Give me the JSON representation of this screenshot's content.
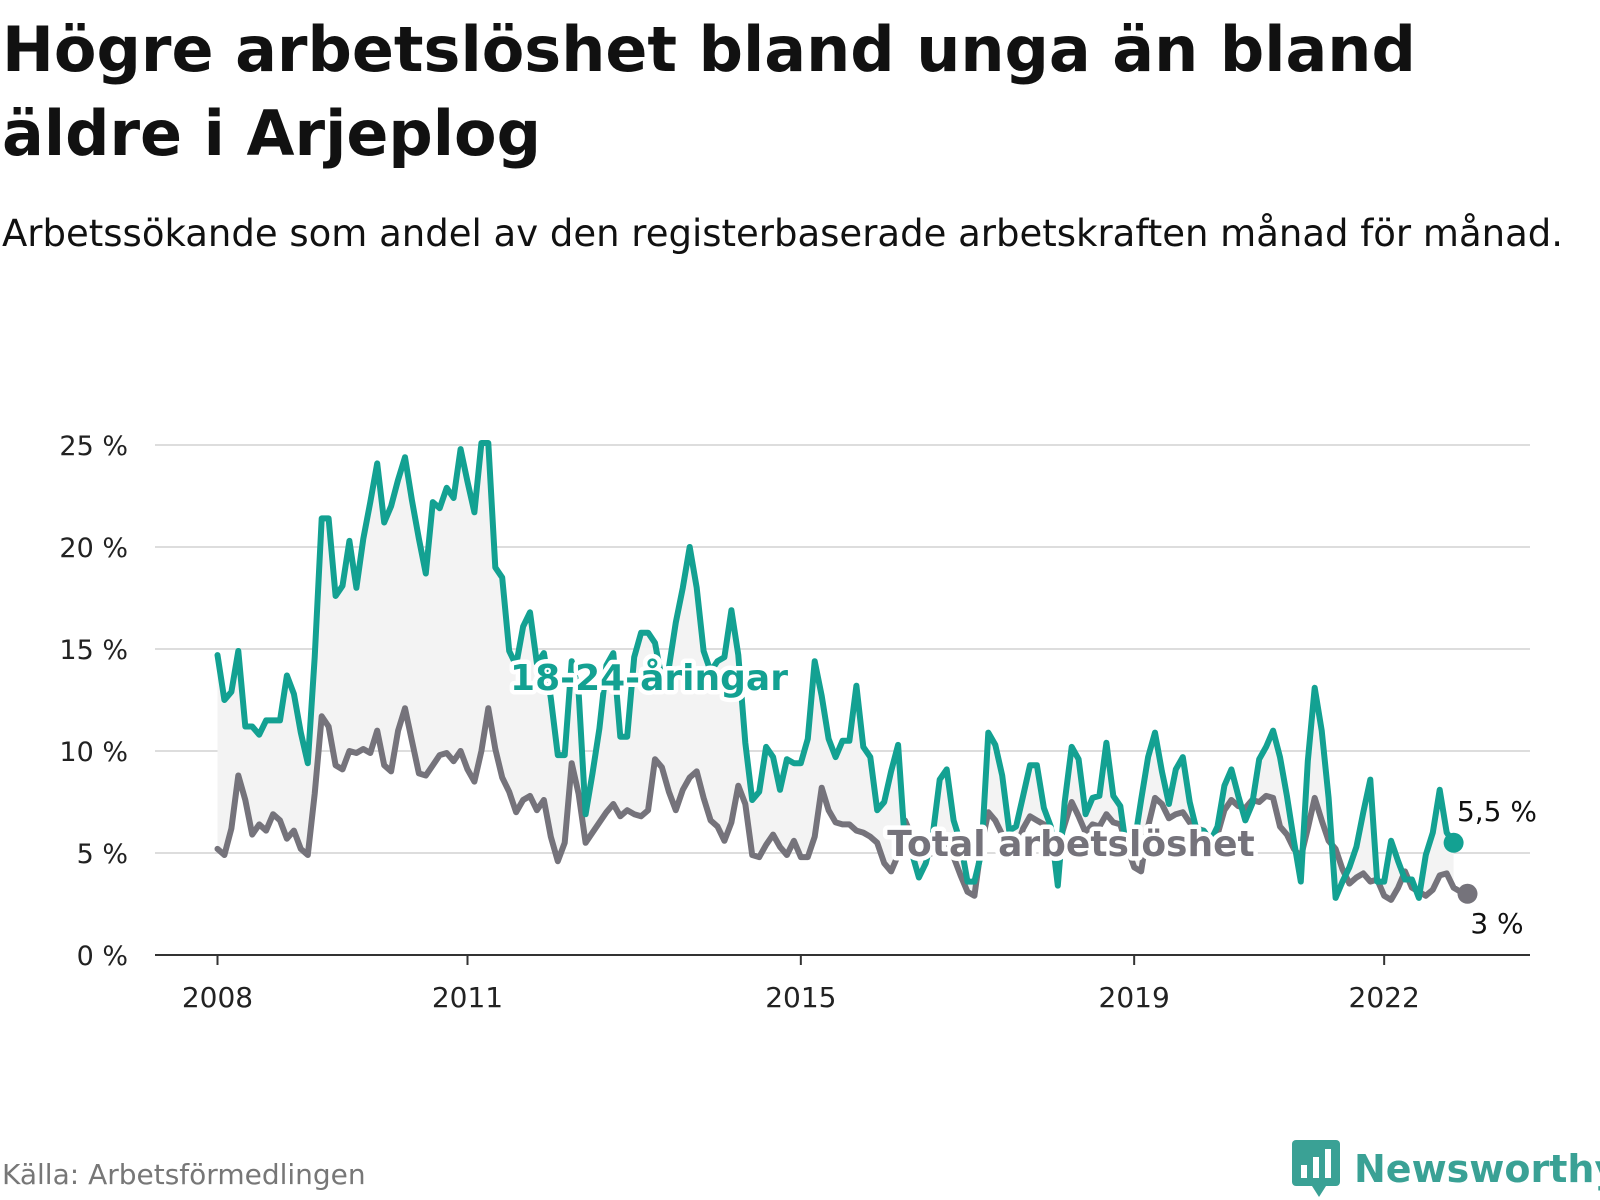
{
  "header": {
    "title": "Högre arbetslöshet bland unga än bland äldre i Arjeplog",
    "subtitle": "Arbetssökande som andel av den registerbaserade arbetskraften månad för månad."
  },
  "footer": {
    "source": "Källa: Arbetsförmedlingen",
    "brand": "Newsworthy"
  },
  "colors": {
    "youth": "#13a192",
    "total": "#75737b",
    "band": "#f3f3f3",
    "grid": "#dddddd",
    "axis": "#333333"
  },
  "chart_data": {
    "type": "line",
    "title": "Högre arbetslöshet bland unga än bland äldre i Arjeplog",
    "xlabel": "",
    "ylabel": "",
    "x_start": 2008.0,
    "x_step_months": 1,
    "xlim": [
      2007.25,
      2023.75
    ],
    "ylim": [
      0,
      25
    ],
    "y_ticks": [
      0,
      5,
      10,
      15,
      20,
      25
    ],
    "y_tick_labels": [
      "0 %",
      "5 %",
      "10 %",
      "15 %",
      "20 %",
      "25 %"
    ],
    "x_ticks": [
      2008,
      2011,
      2015,
      2019,
      2022
    ],
    "x_tick_labels": [
      "2008",
      "2011",
      "2015",
      "2019",
      "2022"
    ],
    "grid": true,
    "series": [
      {
        "name": "18-24-åringar",
        "label": "18-24-åringar",
        "end_label": "5,5 %",
        "values": [
          14.7,
          12.5,
          12.9,
          14.9,
          11.2,
          11.2,
          10.8,
          11.5,
          11.5,
          11.5,
          13.7,
          12.8,
          10.9,
          9.4,
          14.6,
          21.4,
          21.4,
          17.6,
          18.1,
          20.3,
          18.0,
          20.4,
          22.2,
          24.1,
          21.2,
          22.0,
          23.3,
          24.4,
          22.3,
          20.4,
          18.7,
          22.2,
          21.9,
          22.9,
          22.4,
          24.8,
          23.2,
          21.7,
          25.1,
          25.1,
          19.0,
          18.5,
          14.9,
          14.2,
          16.1,
          16.8,
          14.3,
          14.8,
          12.6,
          9.8,
          9.8,
          14.4,
          12.9,
          6.9,
          8.9,
          11.1,
          14.2,
          14.8,
          10.7,
          10.7,
          14.6,
          15.8,
          15.8,
          15.3,
          13.5,
          14.1,
          16.3,
          18.0,
          20.0,
          18.0,
          14.9,
          13.9,
          14.4,
          14.6,
          16.9,
          14.7,
          10.4,
          7.6,
          8.0,
          10.2,
          9.7,
          8.1,
          9.6,
          9.4,
          9.4,
          10.6,
          14.4,
          12.7,
          10.6,
          9.7,
          10.5,
          10.5,
          13.2,
          10.2,
          9.7,
          7.1,
          7.5,
          9.0,
          10.3,
          5.4,
          5.0,
          3.8,
          4.5,
          5.9,
          8.6,
          9.1,
          6.6,
          5.5,
          3.6,
          3.6,
          5.0,
          10.9,
          10.3,
          8.8,
          6.1,
          6.3,
          7.8,
          9.3,
          9.3,
          7.2,
          6.3,
          3.4,
          7.5,
          10.2,
          9.6,
          6.9,
          7.7,
          7.8,
          10.4,
          7.8,
          7.3,
          4.9,
          5.4,
          7.6,
          9.7,
          10.9,
          9.0,
          7.4,
          9.1,
          9.7,
          7.5,
          6.1,
          6.1,
          5.6,
          6.3,
          8.3,
          9.1,
          7.8,
          6.6,
          7.4,
          9.6,
          10.2,
          11.0,
          9.7,
          7.8,
          5.6,
          3.6,
          9.5,
          13.1,
          11.0,
          7.7,
          2.8,
          3.6,
          4.3,
          5.3,
          7.0,
          8.6,
          3.6,
          3.6,
          5.6,
          4.6,
          3.7,
          3.7,
          2.8,
          4.9,
          6.0,
          8.1,
          6.0,
          5.5
        ]
      },
      {
        "name": "Total arbetslöshet",
        "label": "Total arbetslöshet",
        "end_label": "3 %",
        "values": [
          5.2,
          4.9,
          6.2,
          8.8,
          7.6,
          5.9,
          6.4,
          6.1,
          6.9,
          6.6,
          5.7,
          6.1,
          5.2,
          4.9,
          7.9,
          11.7,
          11.2,
          9.3,
          9.1,
          10.0,
          9.9,
          10.1,
          9.9,
          11.0,
          9.3,
          9.0,
          11.0,
          12.1,
          10.5,
          8.9,
          8.8,
          9.3,
          9.8,
          9.9,
          9.5,
          10.0,
          9.1,
          8.5,
          10.0,
          12.1,
          10.1,
          8.7,
          8.0,
          7.0,
          7.6,
          7.8,
          7.1,
          7.6,
          5.8,
          4.6,
          5.5,
          9.4,
          7.9,
          5.5,
          6.0,
          6.5,
          7.0,
          7.4,
          6.8,
          7.1,
          6.9,
          6.8,
          7.1,
          9.6,
          9.2,
          8.0,
          7.1,
          8.1,
          8.7,
          9.0,
          7.7,
          6.6,
          6.3,
          5.6,
          6.5,
          8.3,
          7.4,
          4.9,
          4.8,
          5.4,
          5.9,
          5.3,
          4.9,
          5.6,
          4.8,
          4.8,
          5.8,
          8.2,
          7.1,
          6.5,
          6.4,
          6.4,
          6.1,
          6.0,
          5.8,
          5.5,
          4.5,
          4.1,
          4.9,
          6.6,
          5.8,
          5.3,
          4.9,
          5.0,
          5.2,
          5.3,
          4.8,
          3.9,
          3.1,
          2.9,
          5.4,
          7.0,
          6.6,
          5.9,
          5.2,
          5.2,
          6.2,
          6.8,
          6.6,
          6.4,
          5.2,
          5.3,
          6.4,
          7.5,
          6.8,
          6.0,
          6.4,
          6.3,
          6.9,
          6.5,
          6.4,
          5.3,
          4.3,
          4.1,
          6.3,
          7.7,
          7.4,
          6.7,
          6.9,
          7.0,
          6.5,
          6.2,
          6.1,
          5.6,
          5.9,
          7.1,
          7.6,
          7.3,
          7.2,
          7.6,
          7.5,
          7.8,
          7.7,
          6.3,
          5.9,
          5.2,
          4.8,
          6.2,
          7.7,
          6.6,
          5.6,
          5.2,
          4.2,
          3.5,
          3.8,
          4.0,
          3.6,
          3.7,
          2.9,
          2.7,
          3.3,
          4.1,
          3.3,
          3.1,
          2.9,
          3.2,
          3.9,
          4.0,
          3.3,
          3.1,
          3.0
        ]
      }
    ],
    "series_labels_position": "inline",
    "end_labels": true
  }
}
